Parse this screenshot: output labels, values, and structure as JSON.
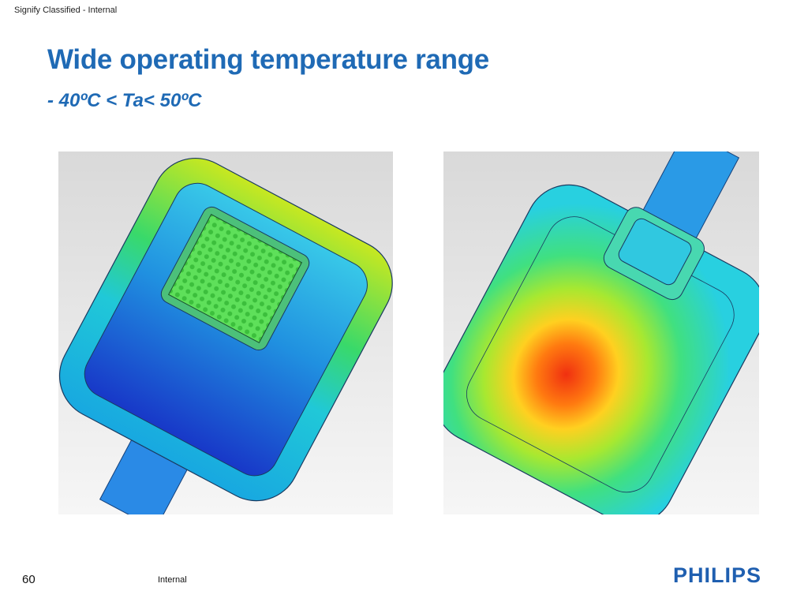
{
  "header": {
    "classification": "Signify Classified - Internal",
    "title": "Wide operating temperature range",
    "subtitle": "- 40ºC < Ta< 50ºC"
  },
  "footer": {
    "page_number": "60",
    "label": "Internal",
    "logo": "PHILIPS"
  }
}
